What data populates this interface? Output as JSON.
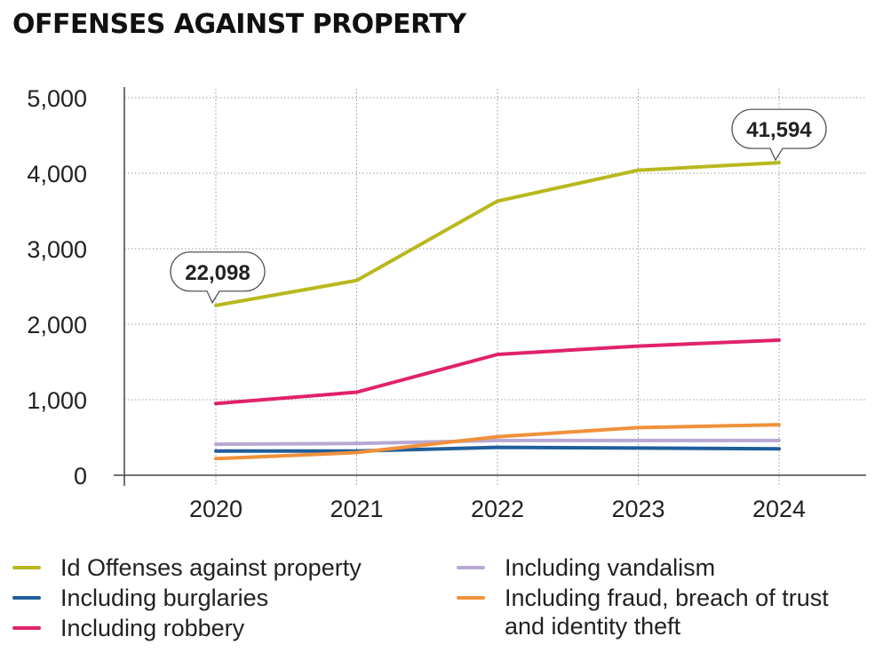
{
  "title": "OFFENSES AGAINST PROPERTY",
  "chart_data": {
    "type": "line",
    "x": [
      "2020",
      "2021",
      "2022",
      "2023",
      "2024"
    ],
    "ylim": [
      0,
      5000
    ],
    "yticks": [
      "0",
      "1,000",
      "2,000",
      "3,000",
      "4,000",
      "5,000"
    ],
    "grid": true,
    "legend_position": "bottom",
    "series": [
      {
        "name": "Id Offenses against property",
        "color": "#b8b81e",
        "values": [
          2250,
          2580,
          3630,
          4040,
          4140
        ]
      },
      {
        "name": "Including burglaries",
        "color": "#1f5e9a",
        "values": [
          320,
          320,
          370,
          360,
          350
        ]
      },
      {
        "name": "Including robbery",
        "color": "#e0226a",
        "values": [
          950,
          1100,
          1600,
          1710,
          1790
        ]
      },
      {
        "name": "Including vandalism",
        "color": "#b9a8d3",
        "values": [
          410,
          420,
          460,
          460,
          460
        ]
      },
      {
        "name": "Including fraud, breach of trust\nand identity theft",
        "color": "#f0913a",
        "values": [
          220,
          300,
          510,
          630,
          670
        ]
      }
    ],
    "annotations": [
      {
        "text": "22,098",
        "x": "2020",
        "series": 0
      },
      {
        "text": "41,594",
        "x": "2024",
        "series": 0
      }
    ]
  }
}
